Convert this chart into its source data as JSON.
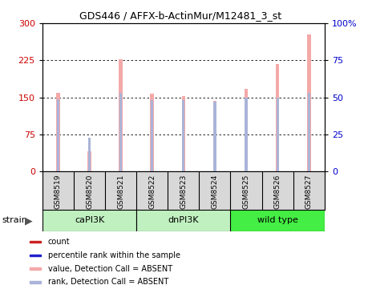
{
  "title": "GDS446 / AFFX-b-ActinMur/M12481_3_st",
  "samples": [
    "GSM8519",
    "GSM8520",
    "GSM8521",
    "GSM8522",
    "GSM8523",
    "GSM8524",
    "GSM8525",
    "GSM8526",
    "GSM8527"
  ],
  "value_absent": [
    160,
    40,
    228,
    158,
    152,
    143,
    168,
    218,
    278
  ],
  "rank_absent": [
    49,
    23,
    53,
    48,
    48,
    47,
    50,
    50,
    53
  ],
  "ylim_left": [
    0,
    300
  ],
  "ylim_right": [
    0,
    100
  ],
  "yticks_left": [
    0,
    75,
    150,
    225,
    300
  ],
  "yticks_right": [
    0,
    25,
    50,
    75,
    100
  ],
  "absent_bar_color": "#f4a9a9",
  "absent_rank_color": "#aab4d8",
  "present_bar_color": "#cc2222",
  "present_rank_color": "#2222cc",
  "group_info": [
    {
      "name": "caPI3K",
      "start": 0,
      "end": 2,
      "color": "#c0f0c0"
    },
    {
      "name": "dnPI3K",
      "start": 3,
      "end": 5,
      "color": "#c0f0c0"
    },
    {
      "name": "wild type",
      "start": 6,
      "end": 8,
      "color": "#44ee44"
    }
  ],
  "bar_width": 0.12,
  "rank_bar_width": 0.08,
  "title_fontsize": 9,
  "axis_fontsize": 8,
  "label_fontsize": 6.5,
  "legend_fontsize": 7,
  "bg_color": "#d8d8d8",
  "grid_color": "#000000",
  "ytick_left_color": "#cc0000",
  "ytick_right_color": "#0000cc"
}
